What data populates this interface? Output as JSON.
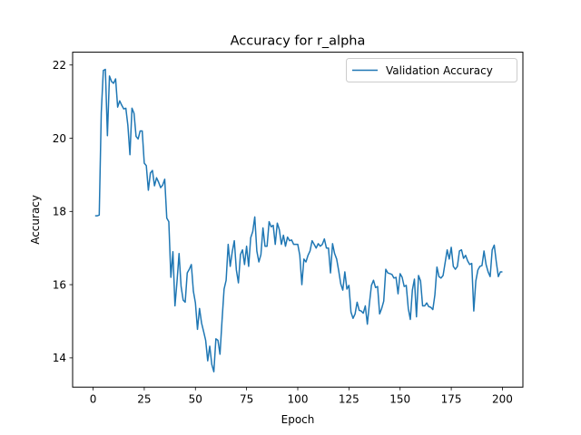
{
  "chart_data": {
    "type": "line",
    "title": "Accuracy for r_alpha",
    "xlabel": "Epoch",
    "ylabel": "Accuracy",
    "xlim": [
      -10,
      210
    ],
    "ylim": [
      13.2,
      22.35
    ],
    "xticks": [
      0,
      25,
      50,
      75,
      100,
      125,
      150,
      175,
      200
    ],
    "yticks": [
      14,
      16,
      18,
      20,
      22
    ],
    "grid": false,
    "legend_position": "top-right",
    "series": [
      {
        "name": "Validation Accuracy",
        "color": "#1f77b4",
        "x": [
          1,
          2,
          3,
          4,
          5,
          6,
          7,
          8,
          9,
          10,
          11,
          12,
          13,
          14,
          15,
          16,
          17,
          18,
          19,
          20,
          21,
          22,
          23,
          24,
          25,
          26,
          27,
          28,
          29,
          30,
          31,
          32,
          33,
          34,
          35,
          36,
          37,
          38,
          39,
          40,
          41,
          42,
          43,
          44,
          45,
          46,
          47,
          48,
          49,
          50,
          51,
          52,
          53,
          54,
          55,
          56,
          57,
          58,
          59,
          60,
          61,
          62,
          63,
          64,
          65,
          66,
          67,
          68,
          69,
          70,
          71,
          72,
          73,
          74,
          75,
          76,
          77,
          78,
          79,
          80,
          81,
          82,
          83,
          84,
          85,
          86,
          87,
          88,
          89,
          90,
          91,
          92,
          93,
          94,
          95,
          96,
          97,
          98,
          99,
          100,
          101,
          102,
          103,
          104,
          105,
          106,
          107,
          108,
          109,
          110,
          111,
          112,
          113,
          114,
          115,
          116,
          117,
          118,
          119,
          120,
          121,
          122,
          123,
          124,
          125,
          126,
          127,
          128,
          129,
          130,
          131,
          132,
          133,
          134,
          135,
          136,
          137,
          138,
          139,
          140,
          141,
          142,
          143,
          144,
          145,
          146,
          147,
          148,
          149,
          150,
          151,
          152,
          153,
          154,
          155,
          156,
          157,
          158,
          159,
          160,
          161,
          162,
          163,
          164,
          165,
          166,
          167,
          168,
          169,
          170,
          171,
          172,
          173,
          174,
          175,
          176,
          177,
          178,
          179,
          180,
          181,
          182,
          183,
          184,
          185,
          186,
          187,
          188,
          189,
          190,
          191,
          192,
          193,
          194,
          195,
          196,
          197,
          198,
          199,
          200
        ],
        "y": [
          17.88,
          17.88,
          17.9,
          20.7,
          21.85,
          21.88,
          20.07,
          21.7,
          21.55,
          21.5,
          21.62,
          20.85,
          21.02,
          20.9,
          20.8,
          20.82,
          20.35,
          19.55,
          20.82,
          20.68,
          20.05,
          19.98,
          20.2,
          20.2,
          19.32,
          19.25,
          18.58,
          19.05,
          19.12,
          18.7,
          18.92,
          18.8,
          18.65,
          18.72,
          18.88,
          17.82,
          17.72,
          16.2,
          16.9,
          15.42,
          16.08,
          16.85,
          15.95,
          15.58,
          15.52,
          16.32,
          16.42,
          16.55,
          15.82,
          15.5,
          14.78,
          15.35,
          14.95,
          14.72,
          14.48,
          13.92,
          14.32,
          13.82,
          13.62,
          14.52,
          14.48,
          14.1,
          15.02,
          15.88,
          16.12,
          17.1,
          16.5,
          16.9,
          17.2,
          16.4,
          16.05,
          16.82,
          16.95,
          16.55,
          17.05,
          16.5,
          17.28,
          17.45,
          17.85,
          16.92,
          16.62,
          16.82,
          17.55,
          17.05,
          17.05,
          17.72,
          17.58,
          17.62,
          17.1,
          17.68,
          17.5,
          17.1,
          17.35,
          17.05,
          17.3,
          17.2,
          17.22,
          17.1,
          17.1,
          17.1,
          16.8,
          16.0,
          16.7,
          16.62,
          16.8,
          16.92,
          17.2,
          17.1,
          17.0,
          17.12,
          17.05,
          17.1,
          17.25,
          17.0,
          17.0,
          16.32,
          17.12,
          16.85,
          16.7,
          16.38,
          16.02,
          15.85,
          16.35,
          15.88,
          15.98,
          15.25,
          15.08,
          15.2,
          15.52,
          15.3,
          15.28,
          15.22,
          15.42,
          14.92,
          15.48,
          15.98,
          16.12,
          15.92,
          15.95,
          15.2,
          15.35,
          15.55,
          16.42,
          16.32,
          16.3,
          16.28,
          16.18,
          16.2,
          15.75,
          16.3,
          16.2,
          15.95,
          15.98,
          15.35,
          15.05,
          15.85,
          16.15,
          15.12,
          16.25,
          16.1,
          15.42,
          15.42,
          15.5,
          15.4,
          15.38,
          15.32,
          15.72,
          16.48,
          16.22,
          16.18,
          16.25,
          16.6,
          16.95,
          16.7,
          17.02,
          16.5,
          16.42,
          16.5,
          16.92,
          16.95,
          16.72,
          16.8,
          16.65,
          16.55,
          16.58,
          15.28,
          16.1,
          16.4,
          16.5,
          16.52,
          16.92,
          16.55,
          16.35,
          16.22,
          16.95,
          17.08,
          16.62,
          16.22,
          16.35,
          16.35
        ]
      }
    ]
  }
}
